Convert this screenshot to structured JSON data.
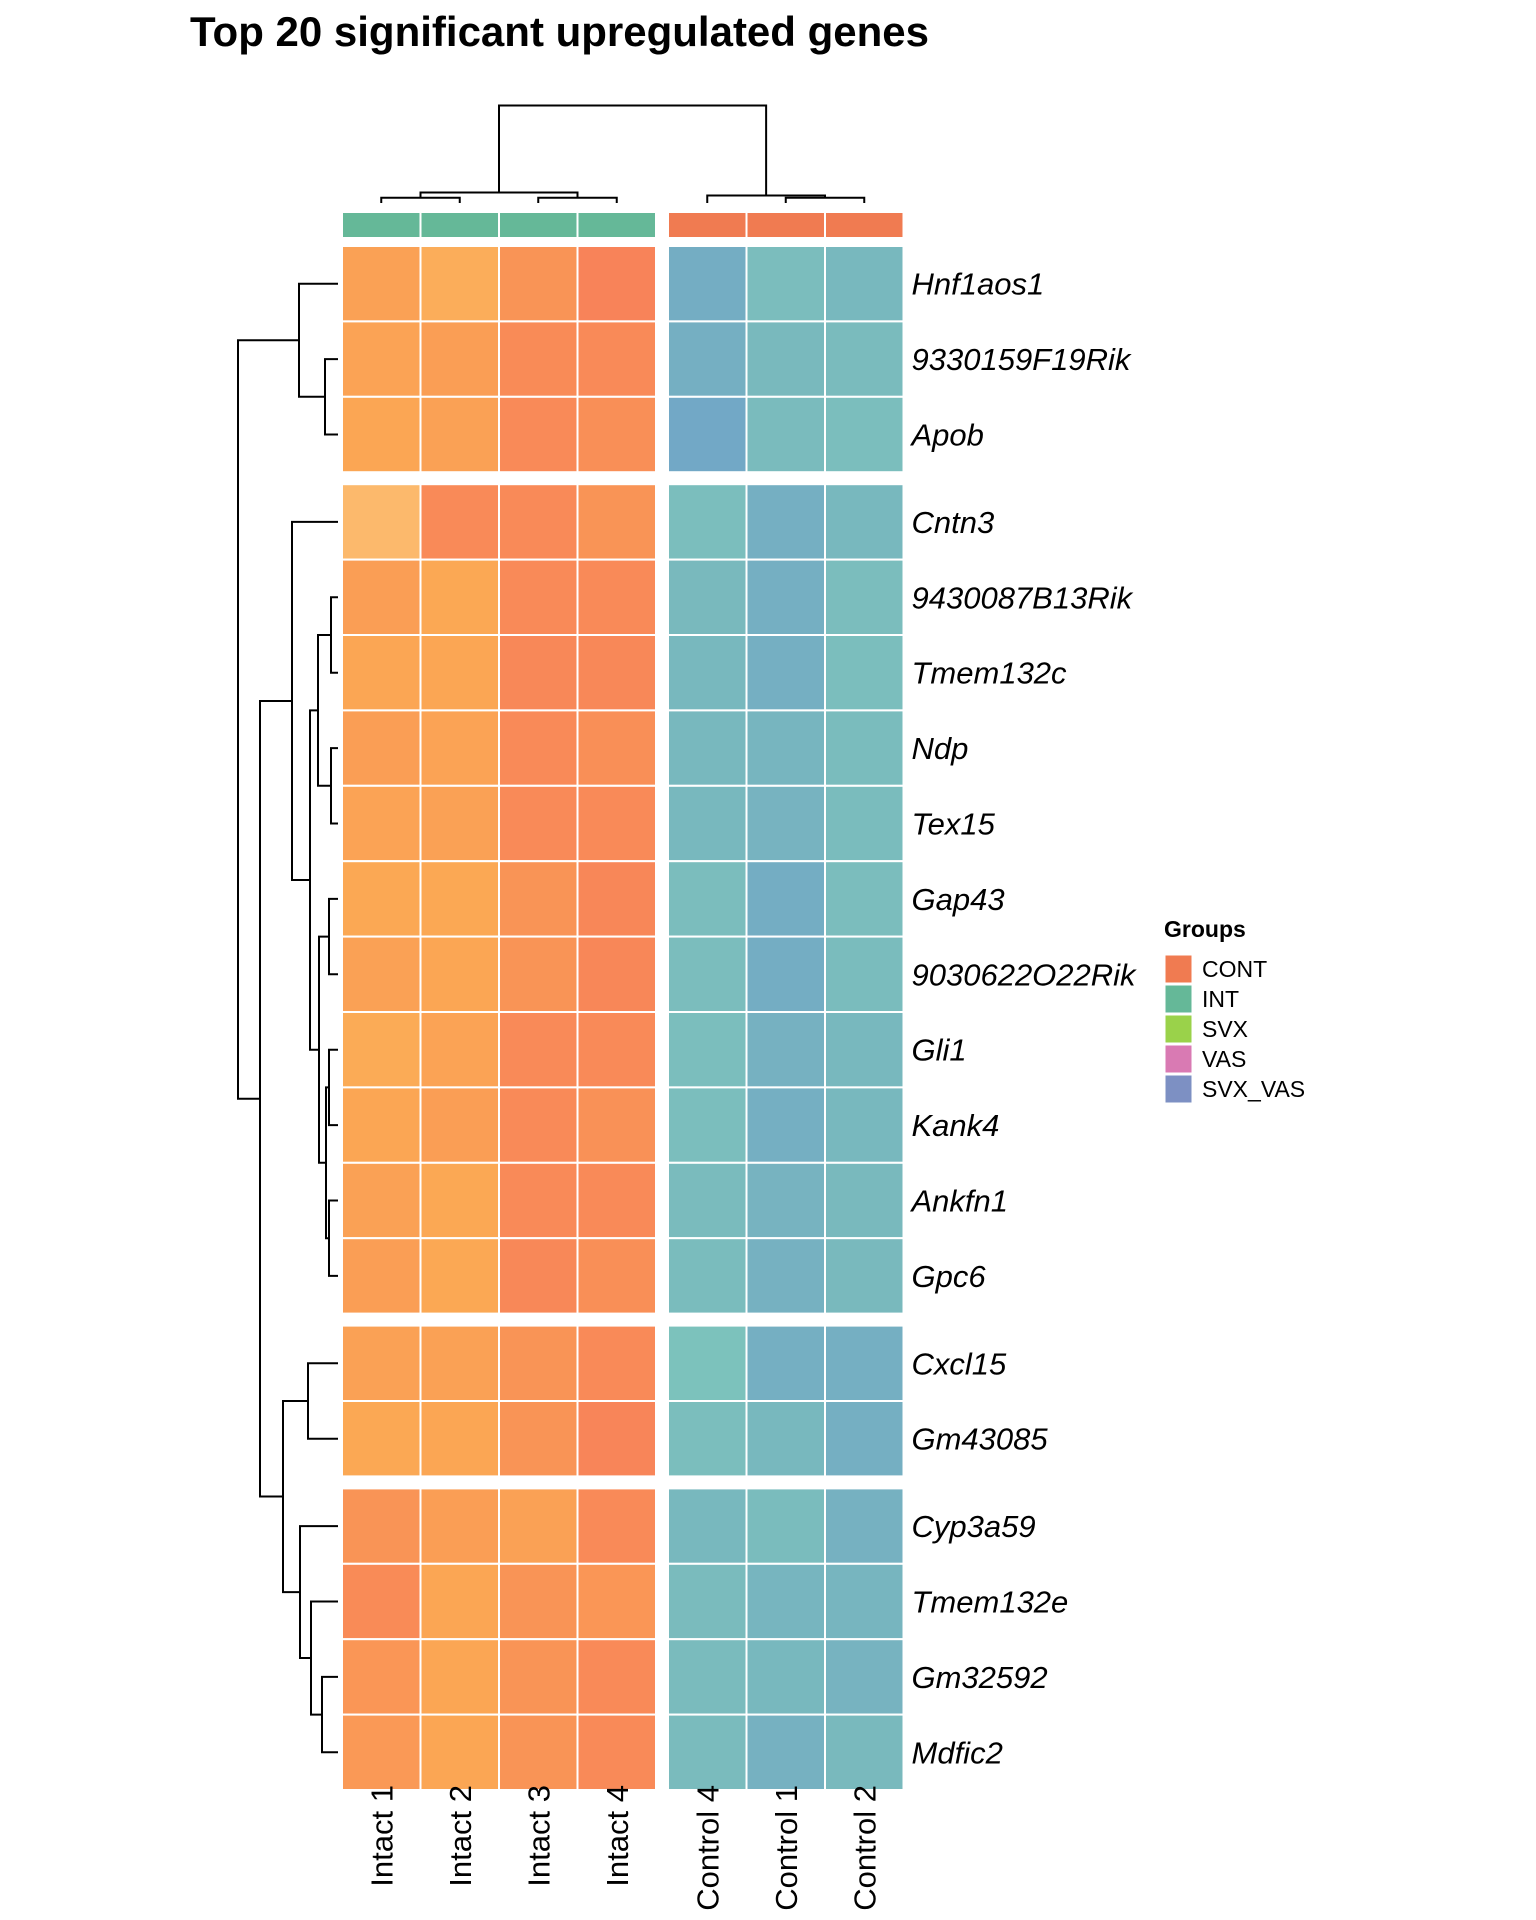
{
  "chart_data": {
    "type": "heatmap",
    "title": "Top 20 significant upregulated genes",
    "xlabel": "",
    "ylabel": "",
    "columns": [
      "Intact 1",
      "Intact 2",
      "Intact 3",
      "Intact 4",
      "Control 4",
      "Control 1",
      "Control 2"
    ],
    "column_groups": [
      "INT",
      "INT",
      "INT",
      "INT",
      "CONT",
      "CONT",
      "CONT"
    ],
    "column_split_after": 4,
    "rows": [
      "Hnf1aos1",
      "9330159F19Rik",
      "Apob",
      "Cntn3",
      "9430087B13Rik",
      "Tmem132c",
      "Ndp",
      "Tex15",
      "Gap43",
      "9030622O22Rik",
      "Gli1",
      "Kank4",
      "Ankfn1",
      "Gpc6",
      "Cxcl15",
      "Gm43085",
      "Cyp3a59",
      "Tmem132e",
      "Gm32592",
      "Mdfic2"
    ],
    "row_splits": [
      3,
      14,
      16
    ],
    "value_scale": "relative expression (row z-score, estimated from color)",
    "color_range": [
      -1.6,
      1.6
    ],
    "values": [
      [
        0.7,
        0.45,
        0.95,
        1.4,
        -1.35,
        -0.9,
        -1.1
      ],
      [
        0.65,
        0.75,
        1.15,
        1.2,
        -1.3,
        -1.05,
        -1.0
      ],
      [
        0.6,
        0.7,
        1.2,
        1.05,
        -1.45,
        -1.0,
        -0.85
      ],
      [
        0.2,
        1.2,
        1.2,
        0.95,
        -0.85,
        -1.3,
        -1.1
      ],
      [
        0.75,
        0.55,
        1.2,
        1.2,
        -1.05,
        -1.3,
        -0.9
      ],
      [
        0.6,
        0.6,
        1.25,
        1.25,
        -1.1,
        -1.3,
        -0.85
      ],
      [
        0.75,
        0.65,
        1.2,
        1.05,
        -1.1,
        -1.15,
        -0.95
      ],
      [
        0.65,
        0.7,
        1.2,
        1.2,
        -1.1,
        -1.2,
        -0.95
      ],
      [
        0.55,
        0.55,
        0.95,
        1.3,
        -0.9,
        -1.35,
        -0.9
      ],
      [
        0.7,
        0.6,
        0.95,
        1.3,
        -0.9,
        -1.35,
        -0.95
      ],
      [
        0.5,
        0.65,
        1.2,
        1.2,
        -0.85,
        -1.25,
        -1.1
      ],
      [
        0.6,
        0.75,
        1.2,
        1.0,
        -0.85,
        -1.3,
        -1.1
      ],
      [
        0.7,
        0.55,
        1.2,
        1.2,
        -1.0,
        -1.2,
        -1.05
      ],
      [
        0.75,
        0.55,
        1.25,
        1.05,
        -0.95,
        -1.25,
        -1.05
      ],
      [
        0.7,
        0.7,
        0.95,
        1.2,
        -0.7,
        -1.3,
        -1.3
      ],
      [
        0.55,
        0.6,
        0.95,
        1.35,
        -0.85,
        -1.1,
        -1.3
      ],
      [
        0.95,
        0.75,
        0.7,
        1.2,
        -1.1,
        -0.95,
        -1.25
      ],
      [
        1.15,
        0.6,
        0.95,
        0.9,
        -1.0,
        -1.15,
        -1.15
      ],
      [
        0.9,
        0.6,
        0.95,
        1.2,
        -1.0,
        -1.1,
        -1.2
      ],
      [
        0.85,
        0.6,
        0.95,
        1.2,
        -1.0,
        -1.25,
        -1.05
      ]
    ],
    "annotation": {
      "title": "Groups",
      "levels": [
        {
          "name": "CONT",
          "color": "#f07b51"
        },
        {
          "name": "INT",
          "color": "#65b898"
        },
        {
          "name": "SVX",
          "color": "#9ad24a"
        },
        {
          "name": "VAS",
          "color": "#d97ab3"
        },
        {
          "name": "SVX_VAS",
          "color": "#7d90c3"
        }
      ]
    },
    "legend_position": "right",
    "column_dendrogram": true,
    "row_dendrogram": true
  },
  "palette": [
    "#6fa2c9",
    "#79b9bd",
    "#7ec6bc",
    "#fcc27a",
    "#fba954",
    "#f98e57",
    "#f77d5a"
  ]
}
